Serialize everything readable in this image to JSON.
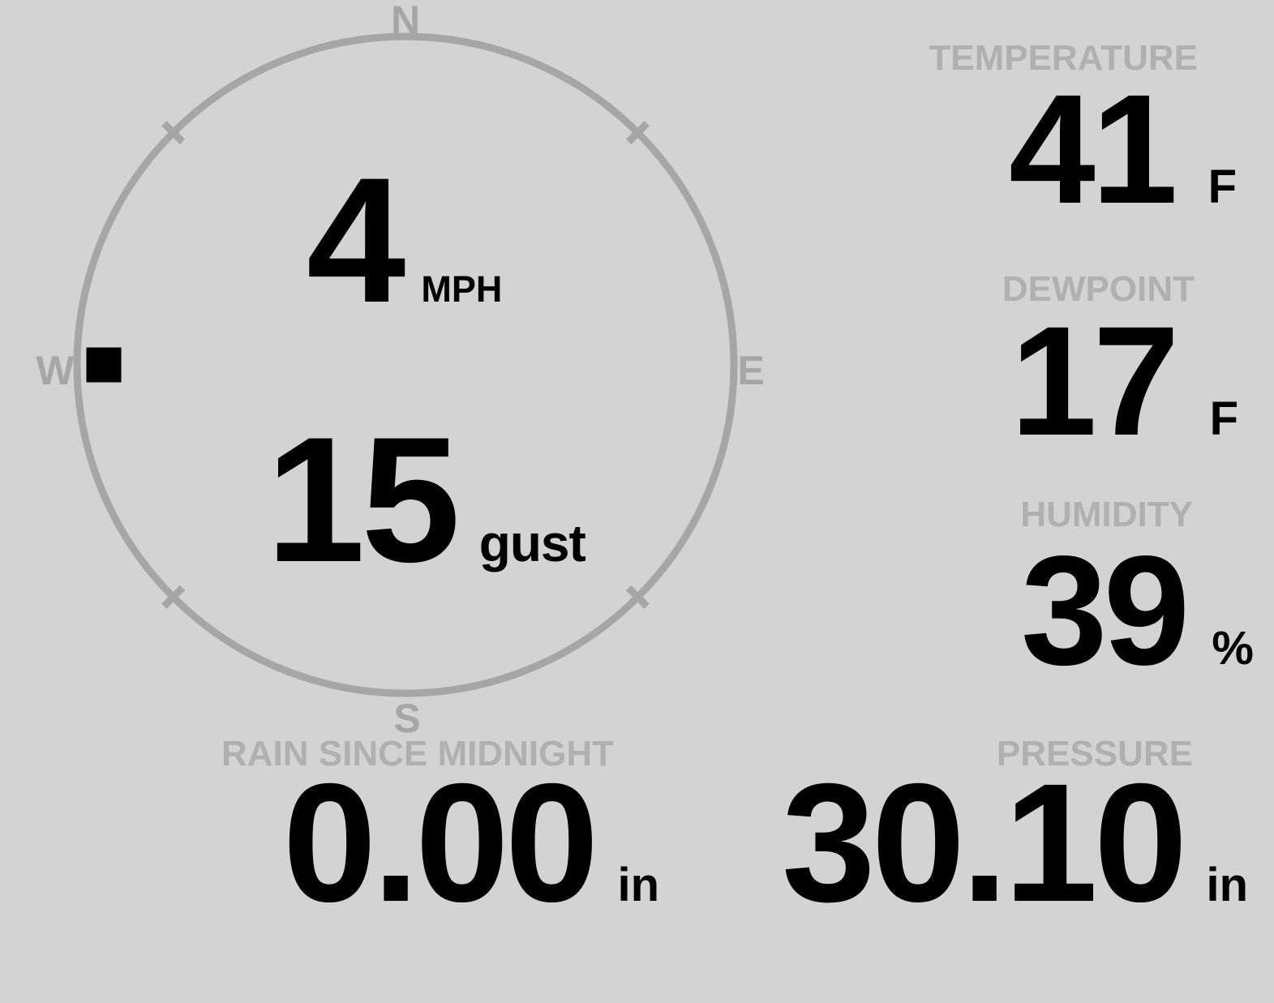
{
  "wind": {
    "speed": "4",
    "speed_unit": "MPH",
    "gust": "15",
    "gust_label": "gust",
    "direction": "W",
    "direction_deg": 270,
    "compass": {
      "north": "N",
      "east": "E",
      "south": "S",
      "west": "W"
    }
  },
  "metrics": {
    "temperature": {
      "label": "TEMPERATURE",
      "value": "41",
      "unit": "F"
    },
    "dewpoint": {
      "label": "DEWPOINT",
      "value": "17",
      "unit": "F"
    },
    "humidity": {
      "label": "HUMIDITY",
      "value": "39",
      "unit": "%"
    },
    "rain": {
      "label": "RAIN SINCE MIDNIGHT",
      "value": "0.00",
      "unit": "in"
    },
    "pressure": {
      "label": "PRESSURE",
      "value": "30.10",
      "unit": "in"
    }
  },
  "colors": {
    "background": "#d3d3d3",
    "dial": "#a6a6a6",
    "compass_letter": "#a6a6a6",
    "label": "#b0b0b0",
    "value": "#000000"
  }
}
